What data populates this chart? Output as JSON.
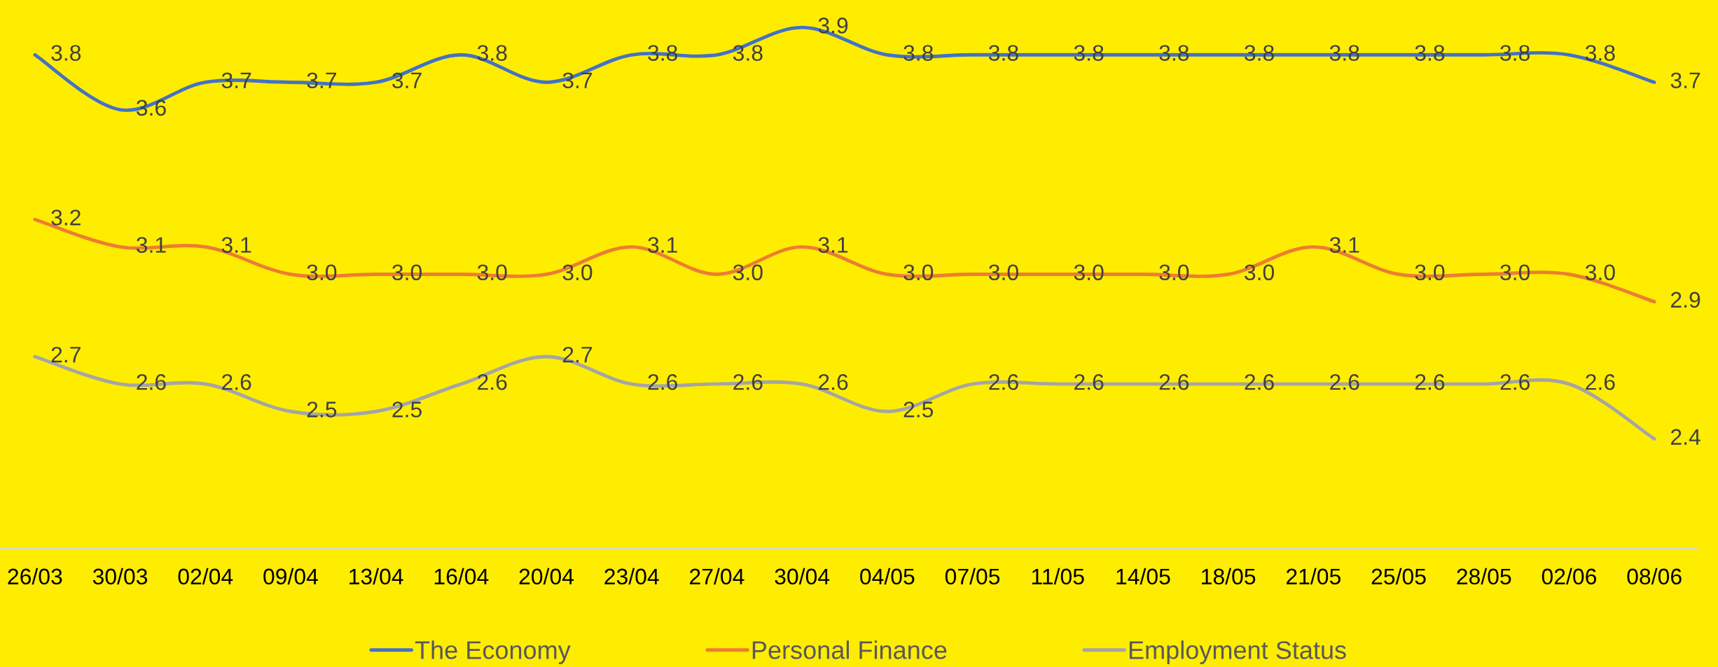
{
  "chart_data": {
    "type": "line",
    "categories": [
      "26/03",
      "30/03",
      "02/04",
      "09/04",
      "13/04",
      "16/04",
      "20/04",
      "23/04",
      "27/04",
      "30/04",
      "04/05",
      "07/05",
      "11/05",
      "14/05",
      "18/05",
      "21/05",
      "25/05",
      "28/05",
      "02/06",
      "08/06"
    ],
    "series": [
      {
        "name": "The Economy",
        "color": "#4472c4",
        "values": [
          3.8,
          3.6,
          3.7,
          3.7,
          3.7,
          3.8,
          3.7,
          3.8,
          3.8,
          3.9,
          3.8,
          3.8,
          3.8,
          3.8,
          3.8,
          3.8,
          3.8,
          3.8,
          3.8,
          3.7
        ],
        "value_labels": [
          "3.8",
          "3.6",
          "3.7",
          "3.7",
          "3.7",
          "3.8",
          "3.7",
          "3.8",
          "3.8",
          "3.9",
          "3.8",
          "3.8",
          "3.8",
          "3.8",
          "3.8",
          "3.8",
          "3.8",
          "3.8",
          "3.8",
          "3.7"
        ]
      },
      {
        "name": "Personal Finance",
        "color": "#ed7d31",
        "values": [
          3.2,
          3.1,
          3.1,
          3.0,
          3.0,
          3.0,
          3.0,
          3.1,
          3.0,
          3.1,
          3.0,
          3.0,
          3.0,
          3.0,
          3.0,
          3.1,
          3.0,
          3.0,
          3.0,
          2.9
        ],
        "value_labels": [
          "3.2",
          "3.1",
          "3.1",
          "3.0",
          "3.0",
          "3.0",
          "3.0",
          "3.1",
          "3.0",
          "3.1",
          "3.0",
          "3.0",
          "3.0",
          "3.0",
          "3.0",
          "3.1",
          "3.0",
          "3.0",
          "3.0",
          "2.9"
        ]
      },
      {
        "name": "Employment Status",
        "color": "#a5a5a5",
        "values": [
          2.7,
          2.6,
          2.6,
          2.5,
          2.5,
          2.6,
          2.7,
          2.6,
          2.6,
          2.6,
          2.5,
          2.6,
          2.6,
          2.6,
          2.6,
          2.6,
          2.6,
          2.6,
          2.6,
          2.4
        ],
        "value_labels": [
          "2.7",
          "2.6",
          "2.6",
          "2.5",
          "2.5",
          "2.6",
          "2.7",
          "2.6",
          "2.6",
          "2.6",
          "2.5",
          "2.6",
          "2.6",
          "2.6",
          "2.6",
          "2.6",
          "2.6",
          "2.6",
          "2.6",
          "2.4"
        ]
      }
    ],
    "ylim": [
      2.0,
      4.0
    ],
    "tick_labels": "x",
    "legend": "bottom"
  }
}
